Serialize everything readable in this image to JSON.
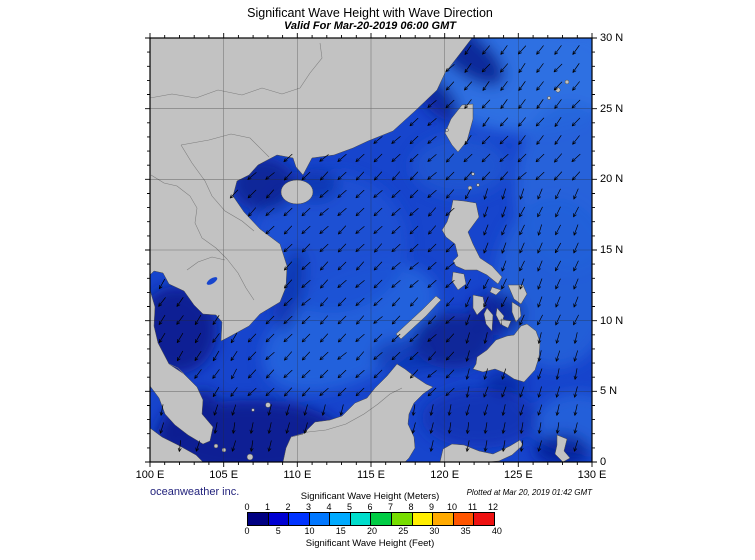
{
  "header": {
    "title": "Significant Wave Height with Wave Direction",
    "subtitle": "Valid For Mar-20-2019 06:00 GMT"
  },
  "axes": {
    "lon_ticks": [
      {
        "value": 100,
        "label": "100 E"
      },
      {
        "value": 105,
        "label": "105 E"
      },
      {
        "value": 110,
        "label": "110 E"
      },
      {
        "value": 115,
        "label": "115 E"
      },
      {
        "value": 120,
        "label": "120 E"
      },
      {
        "value": 125,
        "label": "125 E"
      },
      {
        "value": 130,
        "label": "130 E"
      }
    ],
    "lat_ticks": [
      {
        "value": 30,
        "label": "30 N"
      },
      {
        "value": 25,
        "label": "25 N"
      },
      {
        "value": 20,
        "label": "20 N"
      },
      {
        "value": 15,
        "label": "15 N"
      },
      {
        "value": 10,
        "label": "10 N"
      },
      {
        "value": 5,
        "label": "5 N"
      },
      {
        "value": 0,
        "label": "0"
      }
    ]
  },
  "map": {
    "lon_range": [
      100,
      130
    ],
    "lat_range": [
      0,
      30
    ],
    "arrows": "wave direction arrows pointing generally toward the southwest",
    "colors": {
      "land": "#c2c2c2",
      "coastline": "#4a4a4a",
      "ocean_base": "#1745cd",
      "grid": "#2a2a2a",
      "arrow": "#000000"
    }
  },
  "colorbar": {
    "meters_label": "Significant Wave Height (Meters)",
    "feet_label": "Significant Wave Height (Feet)",
    "meters_ticks": [
      0,
      1,
      2,
      3,
      4,
      5,
      6,
      7,
      8,
      9,
      10,
      11,
      12
    ],
    "feet_ticks": [
      0,
      5,
      10,
      15,
      20,
      25,
      30,
      35,
      40
    ],
    "colors": [
      "#000082",
      "#0000d2",
      "#0033ff",
      "#0077ff",
      "#00aaff",
      "#00ddcc",
      "#00cc44",
      "#77dd00",
      "#ffee00",
      "#ffaa00",
      "#ff5500",
      "#ee1111"
    ]
  },
  "footer": {
    "credit": "oceanweather inc.",
    "plotted": "Plotted at Mar 20, 2019 01:42 GMT"
  }
}
